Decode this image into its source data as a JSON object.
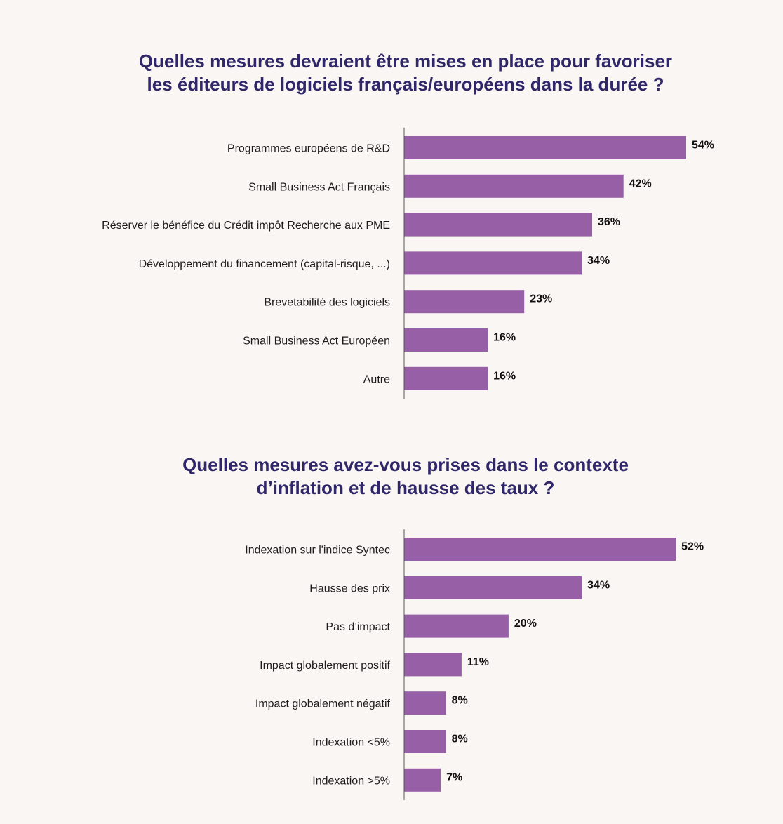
{
  "chart_data": [
    {
      "type": "bar",
      "orientation": "horizontal",
      "title": "Quelles mesures devraient être mises en place pour favoriser les éditeurs de logiciels français/européens dans la durée ?",
      "title_lines": [
        "Quelles mesures devraient être mises en place pour favoriser",
        "les éditeurs de logiciels français/européens dans la durée ?"
      ],
      "categories": [
        "Programmes européens de R&D",
        "Small Business Act Français",
        "Réserver le bénéfice du Crédit impôt Recherche aux PME",
        "Développement du financement (capital-risque, ...)",
        "Brevetabilité des logiciels",
        "Small Business Act Européen",
        "Autre"
      ],
      "values": [
        54,
        42,
        36,
        34,
        23,
        16,
        16
      ],
      "value_labels": [
        "54%",
        "42%",
        "36%",
        "34%",
        "23%",
        "16%",
        "16%"
      ],
      "bar_color": "#975fa6",
      "grid": false
    },
    {
      "type": "bar",
      "orientation": "horizontal",
      "title": "Quelles mesures avez-vous prises dans le contexte d’inflation et de hausse des taux ?",
      "title_lines": [
        "Quelles mesures avez-vous prises dans le contexte",
        "d’inflation et de hausse des taux ?"
      ],
      "categories": [
        "Indexation sur l'indice Syntec",
        "Hausse des prix",
        "Pas d’impact",
        "Impact globalement positif",
        "Impact globalement négatif",
        "Indexation <5%",
        "Indexation >5%"
      ],
      "values": [
        52,
        34,
        20,
        11,
        8,
        8,
        7
      ],
      "value_labels": [
        "52%",
        "34%",
        "20%",
        "11%",
        "8%",
        "8%",
        "7%"
      ],
      "bar_color": "#975fa6",
      "grid": false
    }
  ],
  "colors": {
    "title": "#2f2769",
    "background": "#faf6f3",
    "bar": "#975fa6",
    "axis": "#555555"
  }
}
